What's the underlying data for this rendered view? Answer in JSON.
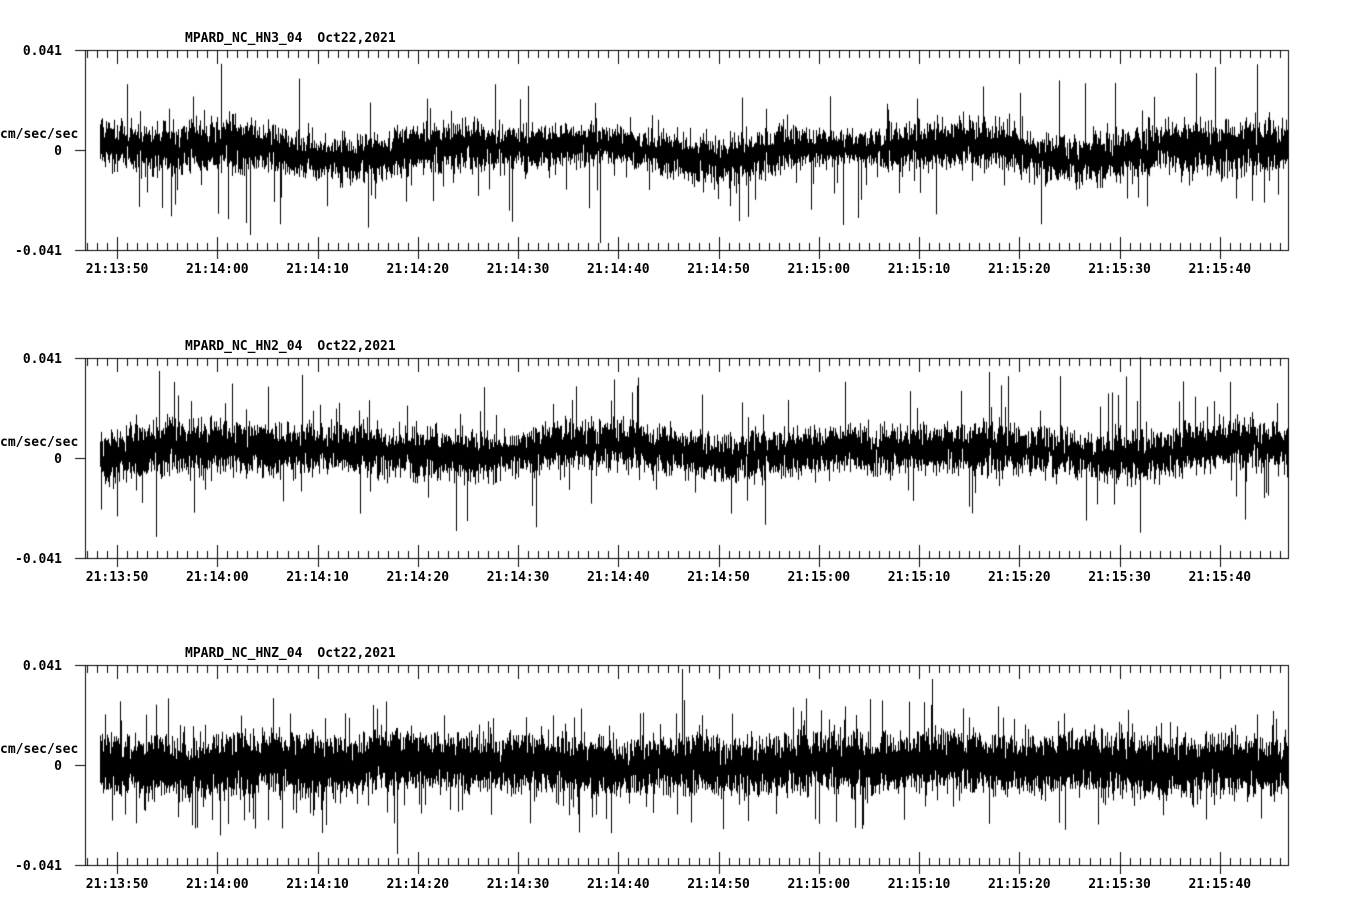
{
  "page": {
    "background": "#ffffff",
    "trace_color": "#000000",
    "text_color": "#000000"
  },
  "chart_data": [
    {
      "type": "line",
      "variant": "seismogram",
      "station": "MPARD_NC_HN3_04",
      "date": "Oct22,2021",
      "ylabel": "cm/sec/sec",
      "ylim": [
        -0.041,
        0.041
      ],
      "yticks": [
        {
          "label": "0.041",
          "value": 0.041
        },
        {
          "label": "0",
          "value": 0
        },
        {
          "label": "-0.041",
          "value": -0.041
        }
      ],
      "xticks": [
        "21:13:50",
        "21:14:00",
        "21:14:10",
        "21:14:20",
        "21:14:30",
        "21:14:40",
        "21:14:50",
        "21:15:00",
        "21:15:10",
        "21:15:20",
        "21:15:30",
        "21:15:40"
      ],
      "time_axis": {
        "duration_s": 120,
        "first_major_tick_offset_s": 3.2,
        "major_interval_s": 10,
        "minor_interval_s": 1
      },
      "waveform": {
        "seed": 911,
        "data_start_s": 1.5,
        "mean_frac": 0.0,
        "amp_frac": 0.21,
        "density": 8,
        "spike_rate": 0.13,
        "spike_min": 0.26,
        "spike_max": 0.75,
        "spike_pow": 2.2,
        "up_bias": 0.42,
        "drift": [
          6,
          4
        ],
        "envelope": [
          [
            0,
            0.95
          ],
          [
            0.04,
            1.1
          ],
          [
            0.09,
            1.2
          ],
          [
            0.14,
            1.05
          ],
          [
            0.22,
            0.95
          ],
          [
            0.28,
            1.05
          ],
          [
            0.34,
            1.05
          ],
          [
            0.4,
            0.9
          ],
          [
            0.45,
            0.8
          ],
          [
            0.5,
            1.1
          ],
          [
            0.56,
            1.05
          ],
          [
            0.6,
            0.85
          ],
          [
            0.63,
            0.7
          ],
          [
            0.66,
            0.95
          ],
          [
            0.72,
            1.1
          ],
          [
            0.78,
            1.05
          ],
          [
            0.84,
            1.1
          ],
          [
            0.9,
            1.05
          ],
          [
            0.95,
            1.15
          ],
          [
            1,
            1.1
          ]
        ],
        "features": [
          {
            "f": 0.126,
            "amp": 0.85,
            "dir": -1
          },
          {
            "f": 0.421,
            "amp": 0.93,
            "dir": -1
          },
          {
            "f": 0.625,
            "amp": 0.75,
            "dir": -1
          },
          {
            "f": 0.638,
            "amp": 0.68,
            "dir": -1
          }
        ]
      }
    },
    {
      "type": "line",
      "variant": "seismogram",
      "station": "MPARD_NC_HN2_04",
      "date": "Oct22,2021",
      "ylabel": "cm/sec/sec",
      "ylim": [
        -0.041,
        0.041
      ],
      "yticks": [
        {
          "label": "0.041",
          "value": 0.041
        },
        {
          "label": "0",
          "value": 0
        },
        {
          "label": "-0.041",
          "value": -0.041
        }
      ],
      "xticks": [
        "21:13:50",
        "21:14:00",
        "21:14:10",
        "21:14:20",
        "21:14:30",
        "21:14:40",
        "21:14:50",
        "21:15:00",
        "21:15:10",
        "21:15:20",
        "21:15:30",
        "21:15:40"
      ],
      "time_axis": {
        "duration_s": 120,
        "first_major_tick_offset_s": 3.2,
        "major_interval_s": 10,
        "minor_interval_s": 1
      },
      "waveform": {
        "seed": 5227,
        "data_start_s": 1.5,
        "mean_frac": 0.07,
        "amp_frac": 0.23,
        "density": 8,
        "spike_rate": 0.13,
        "spike_min": 0.26,
        "spike_max": 0.78,
        "spike_pow": 2.2,
        "up_bias": 0.45,
        "drift": [
          4,
          3
        ],
        "envelope": [
          [
            0,
            1.05
          ],
          [
            0.03,
            1.2
          ],
          [
            0.08,
            1.1
          ],
          [
            0.2,
            1.0
          ],
          [
            0.35,
            1.0
          ],
          [
            0.5,
            0.95
          ],
          [
            0.65,
            1.0
          ],
          [
            0.8,
            1.0
          ],
          [
            0.88,
            1.05
          ],
          [
            1,
            0.95
          ]
        ],
        "features": [
          {
            "f": 0.05,
            "amp": 0.8,
            "dir": 1
          },
          {
            "f": 0.3,
            "amp": 0.8,
            "dir": -1
          },
          {
            "f": 0.875,
            "amp": 0.94,
            "dir": 1
          }
        ]
      }
    },
    {
      "type": "line",
      "variant": "seismogram",
      "station": "MPARD_NC_HNZ_04",
      "date": "Oct22,2021",
      "ylabel": "cm/sec/sec",
      "ylim": [
        -0.041,
        0.041
      ],
      "yticks": [
        {
          "label": "0.041",
          "value": 0.041
        },
        {
          "label": "0",
          "value": 0
        },
        {
          "label": "-0.041",
          "value": -0.041
        }
      ],
      "xticks": [
        "21:13:50",
        "21:14:00",
        "21:14:10",
        "21:14:20",
        "21:14:30",
        "21:14:40",
        "21:14:50",
        "21:15:00",
        "21:15:10",
        "21:15:20",
        "21:15:30",
        "21:15:40"
      ],
      "time_axis": {
        "duration_s": 120,
        "first_major_tick_offset_s": 3.2,
        "major_interval_s": 10,
        "minor_interval_s": 1
      },
      "waveform": {
        "seed": 40961,
        "data_start_s": 1.5,
        "mean_frac": 0.01,
        "amp_frac": 0.26,
        "density": 11,
        "spike_rate": 0.3,
        "spike_min": 0.26,
        "spike_max": 0.68,
        "spike_pow": 2.0,
        "up_bias": 0.5,
        "drift": [
          2,
          2
        ],
        "envelope": [
          [
            0,
            1.0
          ],
          [
            0.15,
            1.03
          ],
          [
            0.3,
            1.0
          ],
          [
            0.5,
            1.0
          ],
          [
            0.7,
            0.98
          ],
          [
            0.85,
            1.0
          ],
          [
            1,
            1.0
          ]
        ],
        "features": [
          {
            "f": 0.25,
            "amp": 0.9,
            "dir": -1
          },
          {
            "f": 0.49,
            "amp": 0.95,
            "dir": 1
          },
          {
            "f": 0.7,
            "amp": 0.85,
            "dir": 1
          }
        ]
      }
    }
  ]
}
